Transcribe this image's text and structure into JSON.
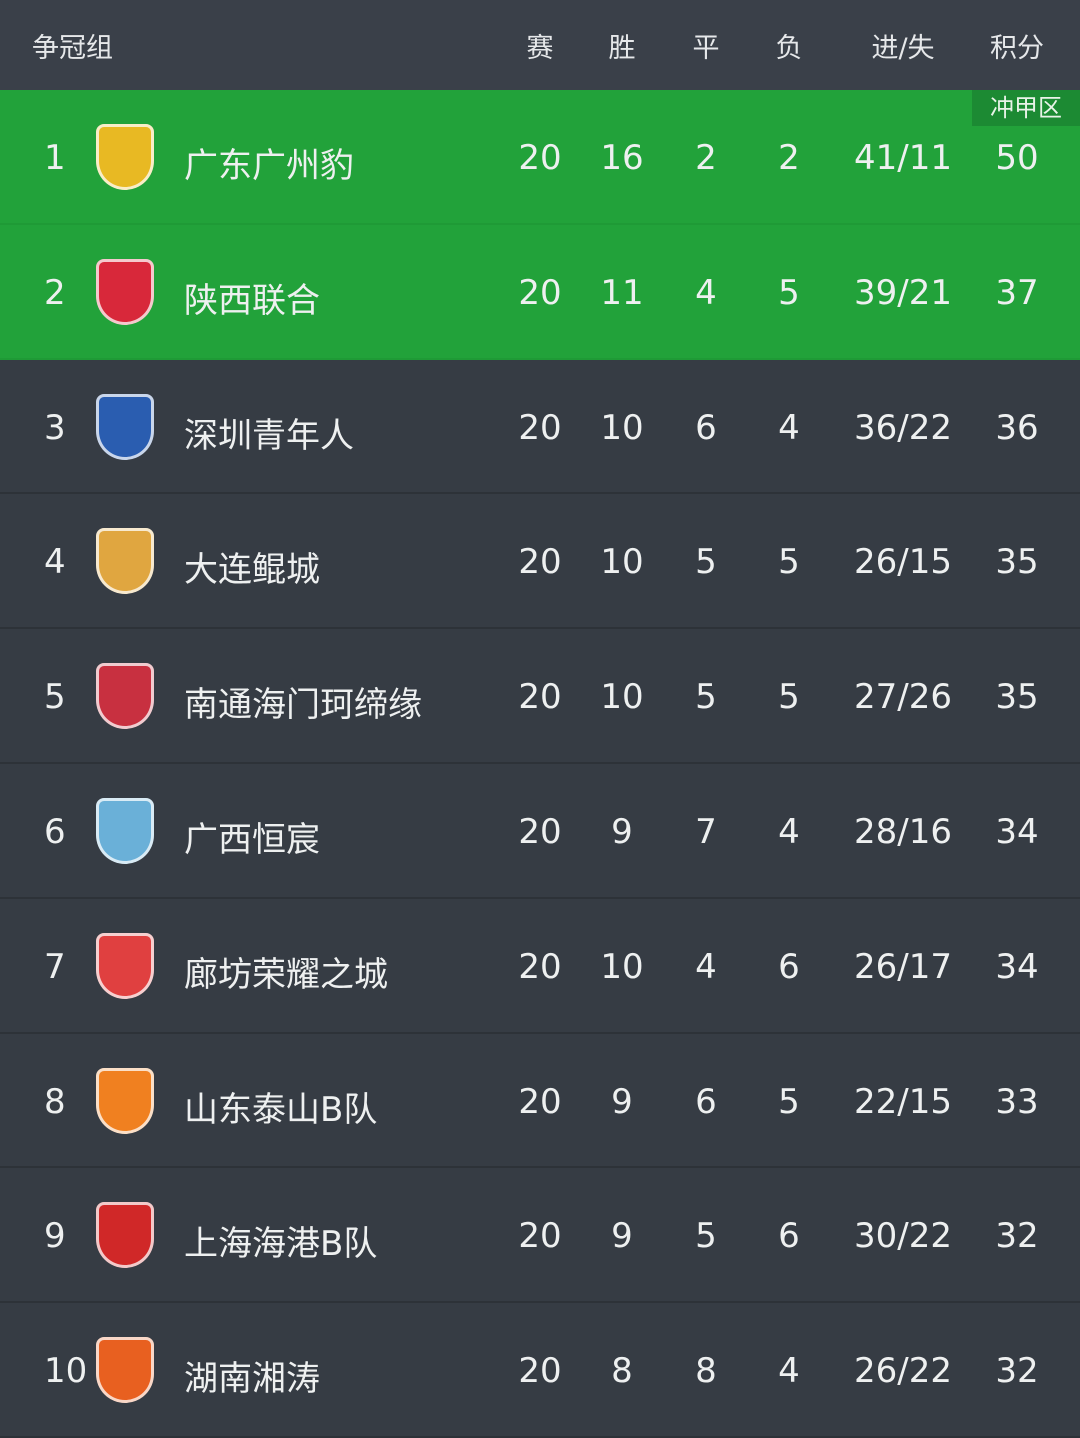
{
  "header": {
    "group": "争冠组",
    "played": "赛",
    "won": "胜",
    "drawn": "平",
    "lost": "负",
    "goals": "进/失",
    "points": "积分"
  },
  "zone_label": "冲甲区",
  "colors": {
    "promotion": "#22a23a",
    "row": "#363c44",
    "header": "#3a4049"
  },
  "rows": [
    {
      "rank": "1",
      "team": "广东广州豹",
      "played": "20",
      "won": "16",
      "drawn": "2",
      "lost": "2",
      "goals": "41/11",
      "points": "50",
      "logo": "#e8b923"
    },
    {
      "rank": "2",
      "team": "陕西联合",
      "played": "20",
      "won": "11",
      "drawn": "4",
      "lost": "5",
      "goals": "39/21",
      "points": "37",
      "logo": "#d8283a"
    },
    {
      "rank": "3",
      "team": "深圳青年人",
      "played": "20",
      "won": "10",
      "drawn": "6",
      "lost": "4",
      "goals": "36/22",
      "points": "36",
      "logo": "#2a5db0"
    },
    {
      "rank": "4",
      "team": "大连鲲城",
      "played": "20",
      "won": "10",
      "drawn": "5",
      "lost": "5",
      "goals": "26/15",
      "points": "35",
      "logo": "#e0a640"
    },
    {
      "rank": "5",
      "team": "南通海门珂缔缘",
      "played": "20",
      "won": "10",
      "drawn": "5",
      "lost": "5",
      "goals": "27/26",
      "points": "35",
      "logo": "#c83040"
    },
    {
      "rank": "6",
      "team": "广西恒宸",
      "played": "20",
      "won": "9",
      "drawn": "7",
      "lost": "4",
      "goals": "28/16",
      "points": "34",
      "logo": "#6ab0d8"
    },
    {
      "rank": "7",
      "team": "廊坊荣耀之城",
      "played": "20",
      "won": "10",
      "drawn": "4",
      "lost": "6",
      "goals": "26/17",
      "points": "34",
      "logo": "#e04040"
    },
    {
      "rank": "8",
      "team": "山东泰山B队",
      "played": "20",
      "won": "9",
      "drawn": "6",
      "lost": "5",
      "goals": "22/15",
      "points": "33",
      "logo": "#f08020"
    },
    {
      "rank": "9",
      "team": "上海海港B队",
      "played": "20",
      "won": "9",
      "drawn": "5",
      "lost": "6",
      "goals": "30/22",
      "points": "32",
      "logo": "#d02828"
    },
    {
      "rank": "10",
      "team": "湖南湘涛",
      "played": "20",
      "won": "8",
      "drawn": "8",
      "lost": "4",
      "goals": "26/22",
      "points": "32",
      "logo": "#e86020"
    }
  ]
}
